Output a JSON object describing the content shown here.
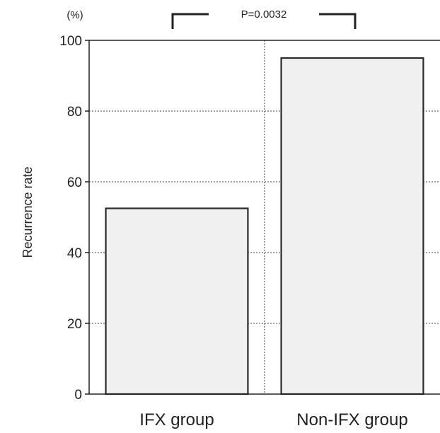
{
  "chart_data": {
    "type": "bar",
    "categories": [
      "IFX group",
      "Non-IFX group"
    ],
    "values": [
      52.5,
      95
    ],
    "ylabel": "Recurrence rate",
    "yunit": "(%)",
    "ylim": [
      0,
      100
    ],
    "yticks": [
      "0",
      "20",
      "40",
      "60",
      "80",
      "100"
    ],
    "grid": true,
    "annotation": "P=0.0032",
    "colors": {
      "bar_fill": "#f0f0f0",
      "bar_stroke": "#2a2a2a",
      "grid": "#444444"
    }
  }
}
